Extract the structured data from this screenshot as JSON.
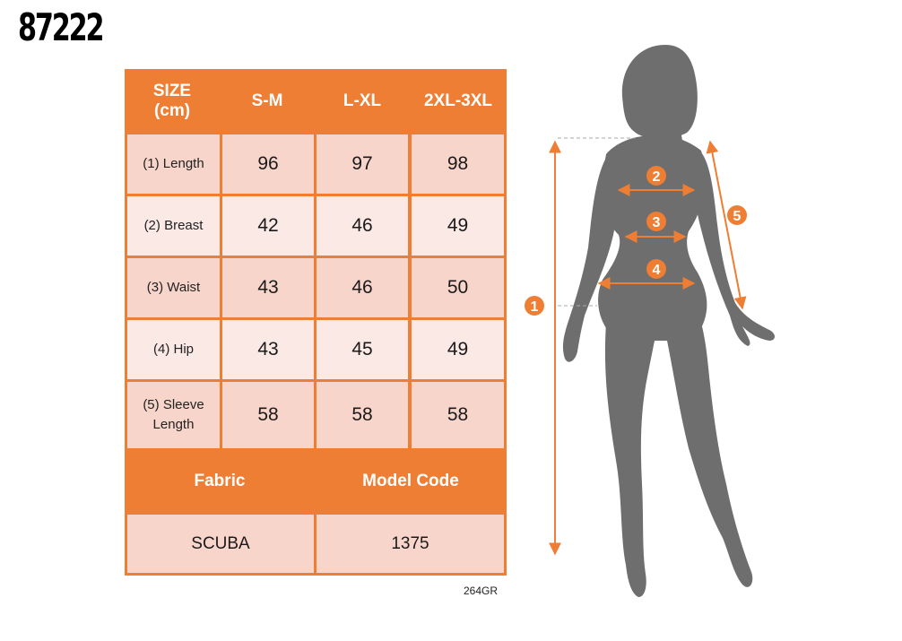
{
  "product_code": "87222",
  "table": {
    "header": {
      "size_label_line1": "SIZE",
      "size_label_line2": "(cm)",
      "sizes": [
        "S-M",
        "L-XL",
        "2XL-3XL"
      ]
    },
    "rows": [
      {
        "label": "(1) Length",
        "values": [
          "96",
          "97",
          "98"
        ]
      },
      {
        "label": "(2) Breast",
        "values": [
          "42",
          "46",
          "49"
        ]
      },
      {
        "label": "(3) Waist",
        "values": [
          "43",
          "46",
          "50"
        ]
      },
      {
        "label": "(4) Hip",
        "values": [
          "43",
          "45",
          "49"
        ]
      },
      {
        "label_line1": "(5) Sleeve",
        "label_line2": "Length",
        "values": [
          "58",
          "58",
          "58"
        ]
      }
    ],
    "footer_headers": {
      "fabric": "Fabric",
      "model_code": "Model Code"
    },
    "footer_values": {
      "fabric": "SCUBA",
      "model_code": "1375"
    }
  },
  "reference_code": "264GR",
  "figure": {
    "markers": [
      "1",
      "2",
      "3",
      "4",
      "5"
    ],
    "accent_color": "#ee7e33",
    "silhouette_color": "#6e6e6e"
  }
}
